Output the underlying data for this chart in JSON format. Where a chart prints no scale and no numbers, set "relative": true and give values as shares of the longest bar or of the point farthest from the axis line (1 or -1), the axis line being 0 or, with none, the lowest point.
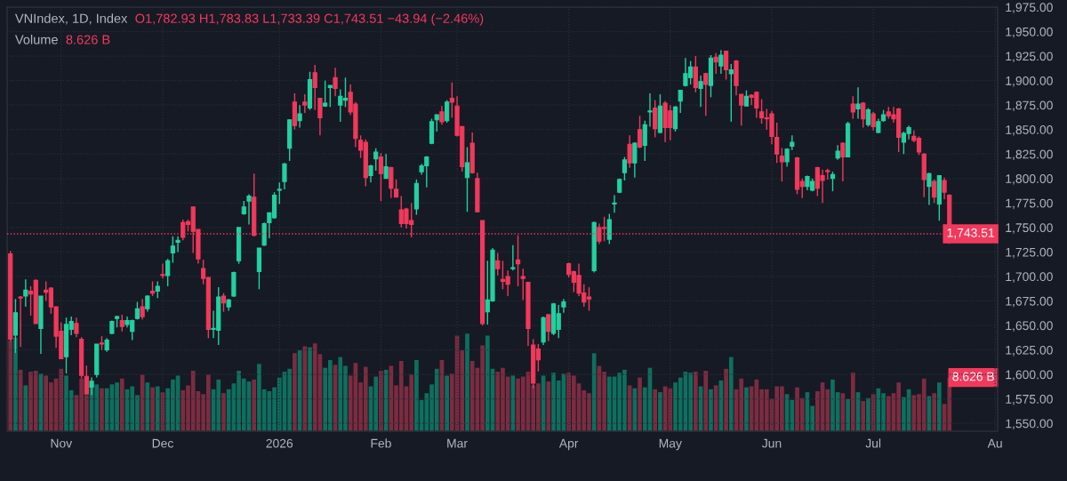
{
  "chart_data": [
    {
      "type": "candlestick",
      "title": "VNIndex, 1D, Index",
      "subtitle": "O1,782.93 H1,783.83 L1,733.39 C1,743.51 −43.94 (−2.46%)",
      "categories": [
        null,
        null,
        null,
        null,
        null,
        null,
        null,
        null,
        null,
        null,
        "Nov",
        null,
        null,
        null,
        null,
        null,
        null,
        null,
        null,
        null,
        null,
        null,
        null,
        null,
        null,
        null,
        null,
        null,
        null,
        null,
        "Dec",
        null,
        null,
        null,
        null,
        null,
        null,
        null,
        null,
        null,
        null,
        null,
        null,
        null,
        null,
        null,
        null,
        null,
        null,
        null,
        null,
        null,
        null,
        "2026",
        null,
        null,
        null,
        null,
        null,
        null,
        null,
        null,
        null,
        null,
        null,
        null,
        null,
        null,
        null,
        null,
        null,
        null,
        null,
        "Feb",
        null,
        null,
        null,
        null,
        null,
        null,
        null,
        null,
        null,
        null,
        null,
        null,
        null,
        null,
        "Mar",
        null,
        null,
        null,
        null,
        null,
        null,
        null,
        null,
        null,
        null,
        null,
        null,
        null,
        null,
        null,
        null,
        null,
        null,
        null,
        null,
        null,
        "Apr",
        null,
        null,
        null,
        null,
        null,
        null,
        null,
        null,
        null,
        null,
        null,
        null,
        null,
        null,
        null,
        null,
        null,
        null,
        null,
        "May",
        null,
        null,
        null,
        null,
        null,
        null,
        null,
        null,
        null,
        null,
        null,
        null,
        null,
        null,
        null,
        null,
        null,
        null,
        null,
        "Jun",
        null,
        null,
        null,
        null,
        null,
        null,
        null,
        null,
        null,
        null,
        null,
        null,
        null,
        null,
        null,
        null,
        null,
        null,
        null,
        "Jul",
        null,
        null,
        null,
        null,
        null,
        null,
        null,
        null,
        null,
        null,
        null,
        null,
        null,
        null,
        null,
        null,
        null,
        null,
        null,
        null,
        null,
        null,
        null,
        "Au"
      ],
      "ohlc": [
        [
          1723,
          1726,
          1634,
          1636
        ],
        [
          1640,
          1677,
          1622,
          1663
        ],
        [
          1679,
          1680,
          1628,
          1678
        ],
        [
          1680,
          1697,
          1669,
          1686
        ],
        [
          1685,
          1690,
          1660,
          1682
        ],
        [
          1696,
          1697,
          1652,
          1652
        ],
        [
          1647,
          1680,
          1621,
          1680
        ],
        [
          1686,
          1695,
          1675,
          1684
        ],
        [
          1688,
          1689,
          1662,
          1669
        ],
        [
          1669,
          1669,
          1627,
          1639
        ],
        [
          1644,
          1653,
          1616,
          1616
        ],
        [
          1618,
          1658,
          1601,
          1651
        ],
        [
          1646,
          1659,
          1640,
          1654
        ],
        [
          1652,
          1658,
          1638,
          1642
        ],
        [
          1636,
          1638,
          1596,
          1599
        ],
        [
          1598,
          1609,
          1580,
          1580
        ],
        [
          1587,
          1597,
          1579,
          1593
        ],
        [
          1600,
          1631,
          1597,
          1631
        ],
        [
          1632,
          1639,
          1625,
          1631
        ],
        [
          1625,
          1637,
          1623,
          1635
        ],
        [
          1642,
          1655,
          1641,
          1654
        ],
        [
          1657,
          1660,
          1648,
          1659
        ],
        [
          1655,
          1661,
          1644,
          1649
        ],
        [
          1651,
          1659,
          1648,
          1655
        ],
        [
          1644,
          1656,
          1635,
          1655
        ],
        [
          1657,
          1674,
          1656,
          1667
        ],
        [
          1669,
          1677,
          1656,
          1659
        ],
        [
          1667,
          1681,
          1664,
          1680
        ],
        [
          1685,
          1695,
          1680,
          1683
        ],
        [
          1685,
          1695,
          1678,
          1690
        ],
        [
          1702,
          1713,
          1698,
          1701
        ],
        [
          1701,
          1718,
          1690,
          1716
        ],
        [
          1724,
          1741,
          1714,
          1731
        ],
        [
          1735,
          1741,
          1725,
          1737
        ],
        [
          1755,
          1758,
          1737,
          1740
        ],
        [
          1756,
          1758,
          1746,
          1753
        ],
        [
          1771,
          1771,
          1724,
          1746
        ],
        [
          1748,
          1748,
          1713,
          1718
        ],
        [
          1708,
          1717,
          1692,
          1698
        ],
        [
          1699,
          1699,
          1637,
          1646
        ],
        [
          1646,
          1665,
          1637,
          1647
        ],
        [
          1645,
          1689,
          1630,
          1679
        ],
        [
          1680,
          1683,
          1664,
          1673
        ],
        [
          1669,
          1677,
          1665,
          1676
        ],
        [
          1680,
          1705,
          1679,
          1704
        ],
        [
          1716,
          1750,
          1713,
          1750
        ],
        [
          1764,
          1777,
          1763,
          1771
        ],
        [
          1777,
          1784,
          1753,
          1782
        ],
        [
          1781,
          1805,
          1741,
          1742
        ],
        [
          1705,
          1729,
          1687,
          1729
        ],
        [
          1732,
          1755,
          1731,
          1754
        ],
        [
          1755,
          1765,
          1739,
          1765
        ],
        [
          1760,
          1786,
          1759,
          1783
        ],
        [
          1788,
          1796,
          1774,
          1789
        ],
        [
          1797,
          1816,
          1789,
          1815
        ],
        [
          1831,
          1860,
          1818,
          1860
        ],
        [
          1878,
          1887,
          1850,
          1854
        ],
        [
          1859,
          1875,
          1852,
          1866
        ],
        [
          1878,
          1886,
          1867,
          1875
        ],
        [
          1872,
          1909,
          1870,
          1901
        ],
        [
          1908,
          1916,
          1870,
          1893
        ],
        [
          1882,
          1882,
          1844,
          1862
        ],
        [
          1874,
          1900,
          1873,
          1877
        ],
        [
          1893,
          1895,
          1873,
          1895
        ],
        [
          1903,
          1913,
          1884,
          1892
        ],
        [
          1875,
          1891,
          1858,
          1884
        ],
        [
          1880,
          1903,
          1873,
          1882
        ],
        [
          1888,
          1896,
          1865,
          1868
        ],
        [
          1876,
          1878,
          1832,
          1841
        ],
        [
          1839,
          1844,
          1821,
          1829
        ],
        [
          1837,
          1840,
          1792,
          1801
        ],
        [
          1803,
          1814,
          1796,
          1813
        ],
        [
          1820,
          1831,
          1808,
          1827
        ],
        [
          1822,
          1826,
          1777,
          1805
        ],
        [
          1800,
          1825,
          1800,
          1812
        ],
        [
          1811,
          1812,
          1780,
          1790
        ],
        [
          1789,
          1799,
          1781,
          1781
        ],
        [
          1768,
          1782,
          1750,
          1754
        ],
        [
          1769,
          1770,
          1749,
          1754
        ],
        [
          1757,
          1775,
          1740,
          1753
        ],
        [
          1769,
          1799,
          1763,
          1795
        ],
        [
          1807,
          1815,
          1804,
          1813
        ],
        [
          1813,
          1823,
          1791,
          1822
        ],
        [
          1836,
          1861,
          1835,
          1858
        ],
        [
          1860,
          1865,
          1848,
          1865
        ],
        [
          1868,
          1874,
          1855,
          1858
        ],
        [
          1859,
          1880,
          1857,
          1878
        ],
        [
          1882,
          1898,
          1862,
          1878
        ],
        [
          1874,
          1884,
          1843,
          1844
        ],
        [
          1853,
          1853,
          1807,
          1812
        ],
        [
          1801,
          1832,
          1766,
          1816
        ],
        [
          1836,
          1847,
          1805,
          1806
        ],
        [
          1800,
          1806,
          1766,
          1766
        ],
        [
          1757,
          1757,
          1650,
          1652
        ],
        [
          1664,
          1716,
          1651,
          1676
        ],
        [
          1675,
          1729,
          1674,
          1727
        ],
        [
          1716,
          1724,
          1701,
          1708
        ],
        [
          1697,
          1716,
          1687,
          1695
        ],
        [
          1700,
          1706,
          1680,
          1692
        ],
        [
          1708,
          1732,
          1706,
          1709
        ],
        [
          1717,
          1742,
          1690,
          1713
        ],
        [
          1700,
          1708,
          1676,
          1698
        ],
        [
          1694,
          1694,
          1629,
          1647
        ],
        [
          1630,
          1636,
          1586,
          1591
        ],
        [
          1626,
          1631,
          1603,
          1615
        ],
        [
          1633,
          1659,
          1630,
          1658
        ],
        [
          1661,
          1661,
          1634,
          1644
        ],
        [
          1642,
          1673,
          1640,
          1672
        ],
        [
          1646,
          1671,
          1637,
          1662
        ],
        [
          1669,
          1677,
          1663,
          1674
        ],
        [
          1713,
          1714,
          1699,
          1702
        ],
        [
          1705,
          1706,
          1684,
          1694
        ],
        [
          1701,
          1713,
          1680,
          1683
        ],
        [
          1683,
          1692,
          1669,
          1674
        ],
        [
          1679,
          1689,
          1665,
          1677
        ],
        [
          1706,
          1756,
          1704,
          1755
        ],
        [
          1750,
          1754,
          1733,
          1736
        ],
        [
          1750,
          1761,
          1736,
          1749
        ],
        [
          1738,
          1764,
          1733,
          1758
        ],
        [
          1774,
          1783,
          1765,
          1775
        ],
        [
          1786,
          1800,
          1785,
          1799
        ],
        [
          1806,
          1822,
          1798,
          1819
        ],
        [
          1835,
          1844,
          1811,
          1816
        ],
        [
          1816,
          1837,
          1801,
          1836
        ],
        [
          1850,
          1864,
          1831,
          1832
        ],
        [
          1834,
          1859,
          1818,
          1855
        ],
        [
          1868,
          1887,
          1853,
          1869
        ],
        [
          1872,
          1880,
          1842,
          1851
        ],
        [
          1847,
          1886,
          1846,
          1874
        ],
        [
          1877,
          1879,
          1837,
          1852
        ],
        [
          1869,
          1875,
          1839,
          1852
        ],
        [
          1851,
          1874,
          1848,
          1873
        ],
        [
          1879,
          1890,
          1867,
          1890
        ],
        [
          1895,
          1923,
          1894,
          1907
        ],
        [
          1903,
          1920,
          1896,
          1914
        ],
        [
          1914,
          1925,
          1888,
          1893
        ],
        [
          1892,
          1905,
          1873,
          1899
        ],
        [
          1907,
          1908,
          1864,
          1896
        ],
        [
          1895,
          1926,
          1883,
          1923
        ],
        [
          1924,
          1928,
          1907,
          1919
        ],
        [
          1915,
          1931,
          1907,
          1926
        ],
        [
          1930,
          1930,
          1901,
          1911
        ],
        [
          1907,
          1917,
          1858,
          1911
        ],
        [
          1920,
          1921,
          1885,
          1895
        ],
        [
          1886,
          1886,
          1854,
          1875
        ],
        [
          1874,
          1890,
          1874,
          1884
        ],
        [
          1885,
          1886,
          1875,
          1883
        ],
        [
          1888,
          1889,
          1862,
          1872
        ],
        [
          1868,
          1881,
          1856,
          1862
        ],
        [
          1862,
          1871,
          1850,
          1861
        ],
        [
          1866,
          1869,
          1835,
          1843
        ],
        [
          1842,
          1857,
          1816,
          1825
        ],
        [
          1823,
          1831,
          1797,
          1817
        ],
        [
          1817,
          1831,
          1812,
          1830
        ],
        [
          1833,
          1844,
          1829,
          1837
        ],
        [
          1821,
          1822,
          1784,
          1789
        ],
        [
          1797,
          1800,
          1780,
          1792
        ],
        [
          1792,
          1803,
          1788,
          1802
        ],
        [
          1788,
          1800,
          1787,
          1797
        ],
        [
          1811,
          1812,
          1782,
          1790
        ],
        [
          1803,
          1809,
          1775,
          1798
        ],
        [
          1808,
          1810,
          1799,
          1807
        ],
        [
          1800,
          1807,
          1787,
          1804
        ],
        [
          1821,
          1834,
          1819,
          1828
        ],
        [
          1836,
          1837,
          1797,
          1822
        ],
        [
          1822,
          1858,
          1822,
          1856
        ],
        [
          1876,
          1884,
          1861,
          1868
        ],
        [
          1871,
          1893,
          1861,
          1876
        ],
        [
          1877,
          1878,
          1852,
          1861
        ],
        [
          1855,
          1872,
          1853,
          1870
        ],
        [
          1866,
          1868,
          1849,
          1853
        ],
        [
          1847,
          1861,
          1846,
          1858
        ],
        [
          1859,
          1870,
          1858,
          1865
        ],
        [
          1868,
          1873,
          1861,
          1864
        ],
        [
          1865,
          1873,
          1857,
          1861
        ],
        [
          1871,
          1872,
          1827,
          1842
        ],
        [
          1837,
          1848,
          1825,
          1846
        ],
        [
          1846,
          1854,
          1840,
          1852
        ],
        [
          1843,
          1849,
          1837,
          1839
        ],
        [
          1841,
          1843,
          1824,
          1827
        ],
        [
          1825,
          1826,
          1781,
          1799
        ],
        [
          1792,
          1806,
          1773,
          1805
        ],
        [
          1797,
          1799,
          1775,
          1781
        ],
        [
          1774,
          1803,
          1757,
          1803
        ],
        [
          1798,
          1801,
          1779,
          1786
        ],
        [
          1782.93,
          1783.83,
          1733.39,
          1743.51
        ],
        null,
        null,
        null,
        null,
        null,
        null,
        null,
        null,
        null
      ],
      "colors": [
        "#f2395b",
        "#22d1a0",
        "#f2395b",
        "#22d1a0",
        "#f2395b",
        "#f2395b",
        "#22d1a0",
        "#f2395b",
        "#f2395b",
        "#f2395b",
        "#f2395b",
        "#22d1a0",
        "#22d1a0",
        "#f2395b",
        "#f2395b",
        "#f2395b",
        "#22d1a0",
        "#22d1a0",
        "#f2395b",
        "#22d1a0",
        "#22d1a0",
        "#22d1a0",
        "#f2395b",
        "#22d1a0",
        "#22d1a0",
        "#22d1a0",
        "#f2395b",
        "#22d1a0",
        "#f2395b",
        "#22d1a0",
        "#f2395b",
        "#22d1a0",
        "#22d1a0",
        "#22d1a0",
        "#f2395b",
        "#f2395b",
        "#f2395b",
        "#f2395b",
        "#f2395b",
        "#f2395b",
        "#22d1a0",
        "#22d1a0",
        "#f2395b",
        "#22d1a0",
        "#22d1a0",
        "#22d1a0",
        "#22d1a0",
        "#22d1a0",
        "#f2395b",
        "#22d1a0",
        "#22d1a0",
        "#22d1a0",
        "#22d1a0",
        "#22d1a0",
        "#22d1a0",
        "#22d1a0",
        "#f2395b",
        "#22d1a0",
        "#f2395b",
        "#22d1a0",
        "#f2395b",
        "#f2395b",
        "#22d1a0",
        "#22d1a0",
        "#f2395b",
        "#22d1a0",
        "#22d1a0",
        "#f2395b",
        "#f2395b",
        "#f2395b",
        "#f2395b",
        "#22d1a0",
        "#22d1a0",
        "#f2395b",
        "#22d1a0",
        "#f2395b",
        "#f2395b",
        "#f2395b",
        "#f2395b",
        "#f2395b",
        "#22d1a0",
        "#22d1a0",
        "#22d1a0",
        "#22d1a0",
        "#22d1a0",
        "#f2395b",
        "#22d1a0",
        "#f2395b",
        "#f2395b",
        "#f2395b",
        "#22d1a0",
        "#f2395b",
        "#f2395b",
        "#f2395b",
        "#22d1a0",
        "#22d1a0",
        "#f2395b",
        "#f2395b",
        "#f2395b",
        "#22d1a0",
        "#f2395b",
        "#f2395b",
        "#f2395b",
        "#f2395b",
        "#f2395b",
        "#22d1a0",
        "#f2395b",
        "#22d1a0",
        "#22d1a0",
        "#22d1a0",
        "#f2395b",
        "#f2395b",
        "#f2395b",
        "#f2395b",
        "#f2395b",
        "#22d1a0",
        "#f2395b",
        "#f2395b",
        "#22d1a0",
        "#22d1a0",
        "#22d1a0",
        "#22d1a0",
        "#f2395b",
        "#22d1a0",
        "#f2395b",
        "#22d1a0",
        "#22d1a0",
        "#f2395b",
        "#22d1a0",
        "#f2395b",
        "#f2395b",
        "#22d1a0",
        "#22d1a0",
        "#22d1a0",
        "#22d1a0",
        "#f2395b",
        "#22d1a0",
        "#f2395b",
        "#22d1a0",
        "#f2395b",
        "#22d1a0",
        "#f2395b",
        "#22d1a0",
        "#f2395b",
        "#f2395b",
        "#22d1a0",
        "#f2395b",
        "#f2395b",
        "#f2395b",
        "#f2395b",
        "#f2395b",
        "#f2395b",
        "#f2395b",
        "#22d1a0",
        "#22d1a0",
        "#f2395b",
        "#f2395b",
        "#22d1a0",
        "#22d1a0",
        "#f2395b",
        "#f2395b",
        "#f2395b",
        "#22d1a0",
        "#22d1a0",
        "#f2395b",
        "#22d1a0",
        "#f2395b",
        "#22d1a0",
        "#f2395b",
        "#22d1a0",
        "#f2395b",
        "#22d1a0",
        "#22d1a0",
        "#f2395b",
        "#f2395b",
        "#f2395b",
        "#22d1a0",
        "#22d1a0",
        "#f2395b",
        "#f2395b",
        "#f2395b",
        "#22d1a0",
        "#f2395b",
        "#22d1a0",
        "#f2395b",
        "#f2395b",
        null,
        null,
        null,
        null,
        null,
        null,
        null,
        null,
        null
      ],
      "ylim": [
        1542,
        1975
      ],
      "yticks": [
        {
          "value": 1550,
          "label": "1,550.00"
        },
        {
          "value": 1575,
          "label": "1,575.00"
        },
        {
          "value": 1600,
          "label": "1,600.00"
        },
        {
          "value": 1625,
          "label": "1,625.00"
        },
        {
          "value": 1650,
          "label": "1,650.00"
        },
        {
          "value": 1675,
          "label": "1,675.00"
        },
        {
          "value": 1700,
          "label": "1,700.00"
        },
        {
          "value": 1725,
          "label": "1,725.00"
        },
        {
          "value": 1750,
          "label": "1,750.00"
        },
        {
          "value": 1775,
          "label": "1,775.00"
        },
        {
          "value": 1800,
          "label": "1,800.00"
        },
        {
          "value": 1825,
          "label": "1,825.00"
        },
        {
          "value": 1850,
          "label": "1,850.00"
        },
        {
          "value": 1875,
          "label": "1,875.00"
        },
        {
          "value": 1900,
          "label": "1,900.00"
        },
        {
          "value": 1925,
          "label": "1,925.00"
        },
        {
          "value": 1950,
          "label": "1,950.00"
        },
        {
          "value": 1975,
          "label": "1,975.00"
        }
      ],
      "ref_lines": [
        {
          "axis": "y",
          "value": 1743.51,
          "label": "1,743.51",
          "color": "#f2395b",
          "line_style": "dotted"
        }
      ],
      "grid": true
    },
    {
      "type": "bar",
      "relative": true,
      "title": "Volume",
      "subtitle": "8.626 B",
      "tick_labels": false,
      "annotations": [
        "8.626 B"
      ],
      "categories": [
        null,
        null,
        null,
        null,
        null,
        null,
        null,
        null,
        null,
        null,
        null,
        null,
        null,
        null,
        null,
        null,
        null,
        null,
        null,
        null,
        null,
        null,
        null,
        null,
        null,
        null,
        null,
        null,
        null,
        null,
        null,
        null,
        null,
        null,
        null,
        null,
        null,
        null,
        null,
        null,
        null,
        null,
        null,
        null,
        null,
        null,
        null,
        null,
        null,
        null,
        null,
        null,
        null,
        null,
        null,
        null,
        null,
        null,
        null,
        null,
        null,
        null,
        null,
        null,
        null,
        null,
        null,
        null,
        null,
        null,
        null,
        null,
        null,
        null,
        null,
        null,
        null,
        null,
        null,
        null,
        null,
        null,
        null,
        null,
        null,
        null,
        null,
        null,
        null,
        null,
        null,
        null,
        null,
        null,
        null,
        null,
        null,
        null,
        null,
        null,
        null,
        null,
        null,
        null,
        null,
        null,
        null,
        null,
        null,
        null,
        null,
        null,
        null,
        null,
        null,
        null,
        null,
        null,
        null,
        null,
        null,
        null,
        null,
        null,
        null,
        null,
        null,
        null,
        null,
        null,
        null,
        null,
        null,
        null,
        null,
        null,
        null,
        null,
        null,
        null,
        null,
        null,
        null,
        null,
        null,
        null,
        null,
        null,
        null,
        null,
        null,
        null,
        null,
        null,
        null,
        null,
        null,
        null,
        null,
        null,
        null,
        null,
        null,
        null,
        null,
        null,
        null,
        null,
        null,
        null,
        null,
        null,
        null,
        null,
        null,
        null,
        null,
        null,
        null,
        null,
        null,
        null,
        null,
        null,
        null,
        null
      ],
      "values": [
        0.93,
        0.96,
        0.63,
        0.47,
        0.61,
        0.62,
        0.59,
        0.57,
        0.5,
        0.54,
        0.64,
        0.57,
        0.42,
        0.37,
        0.54,
        0.37,
        0.49,
        0.48,
        0.44,
        0.44,
        0.48,
        0.5,
        0.54,
        0.43,
        0.46,
        0.37,
        0.58,
        0.5,
        0.45,
        0.46,
        0.4,
        0.44,
        0.53,
        0.57,
        0.42,
        0.47,
        0.62,
        0.41,
        0.38,
        0.58,
        0.43,
        0.53,
        0.39,
        0.43,
        0.49,
        0.62,
        0.54,
        0.51,
        0.53,
        0.69,
        0.43,
        0.41,
        0.45,
        0.55,
        0.61,
        0.64,
        0.8,
        0.83,
        0.87,
        0.86,
        0.9,
        0.79,
        0.65,
        0.73,
        0.68,
        0.76,
        0.67,
        0.57,
        0.7,
        0.5,
        0.66,
        0.46,
        0.56,
        0.62,
        0.63,
        0.67,
        0.47,
        0.72,
        0.46,
        0.58,
        0.73,
        0.32,
        0.39,
        0.48,
        0.64,
        0.73,
        0.57,
        0.59,
        0.98,
        0.83,
        1.0,
        0.72,
        0.65,
        0.88,
        0.98,
        0.64,
        0.61,
        0.65,
        0.56,
        0.57,
        0.54,
        0.56,
        0.61,
        0.47,
        0.49,
        0.57,
        0.51,
        0.6,
        0.52,
        0.59,
        0.6,
        0.57,
        0.49,
        0.42,
        0.39,
        0.8,
        0.67,
        0.61,
        0.56,
        0.56,
        0.6,
        0.63,
        0.47,
        0.44,
        0.55,
        0.45,
        0.65,
        0.43,
        0.4,
        0.46,
        0.44,
        0.5,
        0.55,
        0.61,
        0.6,
        0.61,
        0.46,
        0.62,
        0.43,
        0.47,
        0.52,
        0.64,
        0.76,
        0.43,
        0.54,
        0.45,
        0.46,
        0.53,
        0.43,
        0.43,
        0.33,
        0.46,
        0.46,
        0.38,
        0.32,
        0.45,
        0.34,
        0.4,
        0.26,
        0.41,
        0.5,
        0.43,
        0.53,
        0.4,
        0.39,
        0.33,
        0.6,
        0.4,
        0.31,
        0.34,
        0.38,
        0.44,
        0.39,
        0.36,
        0.39,
        0.5,
        0.35,
        0.43,
        0.37,
        0.38,
        0.54,
        0.36,
        0.39,
        0.5,
        0.28,
        0.55
      ],
      "colors": [
        "#7c2c40",
        "#0e6f5e",
        "#7c2c40",
        "#0e6f5e",
        "#7c2c40",
        "#7c2c40",
        "#0e6f5e",
        "#7c2c40",
        "#7c2c40",
        "#7c2c40",
        "#7c2c40",
        "#0e6f5e",
        "#0e6f5e",
        "#7c2c40",
        "#7c2c40",
        "#7c2c40",
        "#0e6f5e",
        "#0e6f5e",
        "#7c2c40",
        "#0e6f5e",
        "#0e6f5e",
        "#0e6f5e",
        "#7c2c40",
        "#0e6f5e",
        "#0e6f5e",
        "#0e6f5e",
        "#7c2c40",
        "#0e6f5e",
        "#7c2c40",
        "#0e6f5e",
        "#7c2c40",
        "#0e6f5e",
        "#0e6f5e",
        "#0e6f5e",
        "#7c2c40",
        "#7c2c40",
        "#7c2c40",
        "#7c2c40",
        "#7c2c40",
        "#7c2c40",
        "#0e6f5e",
        "#0e6f5e",
        "#7c2c40",
        "#0e6f5e",
        "#0e6f5e",
        "#0e6f5e",
        "#0e6f5e",
        "#0e6f5e",
        "#7c2c40",
        "#0e6f5e",
        "#0e6f5e",
        "#0e6f5e",
        "#0e6f5e",
        "#0e6f5e",
        "#0e6f5e",
        "#0e6f5e",
        "#7c2c40",
        "#0e6f5e",
        "#7c2c40",
        "#0e6f5e",
        "#7c2c40",
        "#7c2c40",
        "#0e6f5e",
        "#0e6f5e",
        "#7c2c40",
        "#0e6f5e",
        "#0e6f5e",
        "#7c2c40",
        "#7c2c40",
        "#7c2c40",
        "#7c2c40",
        "#0e6f5e",
        "#0e6f5e",
        "#7c2c40",
        "#0e6f5e",
        "#7c2c40",
        "#7c2c40",
        "#7c2c40",
        "#7c2c40",
        "#7c2c40",
        "#0e6f5e",
        "#0e6f5e",
        "#0e6f5e",
        "#0e6f5e",
        "#0e6f5e",
        "#7c2c40",
        "#0e6f5e",
        "#7c2c40",
        "#7c2c40",
        "#7c2c40",
        "#0e6f5e",
        "#7c2c40",
        "#7c2c40",
        "#7c2c40",
        "#0e6f5e",
        "#0e6f5e",
        "#7c2c40",
        "#7c2c40",
        "#7c2c40",
        "#0e6f5e",
        "#7c2c40",
        "#7c2c40",
        "#7c2c40",
        "#7c2c40",
        "#7c2c40",
        "#0e6f5e",
        "#7c2c40",
        "#0e6f5e",
        "#0e6f5e",
        "#0e6f5e",
        "#7c2c40",
        "#7c2c40",
        "#7c2c40",
        "#7c2c40",
        "#7c2c40",
        "#0e6f5e",
        "#7c2c40",
        "#7c2c40",
        "#0e6f5e",
        "#0e6f5e",
        "#0e6f5e",
        "#0e6f5e",
        "#7c2c40",
        "#0e6f5e",
        "#7c2c40",
        "#0e6f5e",
        "#0e6f5e",
        "#7c2c40",
        "#0e6f5e",
        "#7c2c40",
        "#7c2c40",
        "#0e6f5e",
        "#0e6f5e",
        "#0e6f5e",
        "#0e6f5e",
        "#7c2c40",
        "#0e6f5e",
        "#7c2c40",
        "#0e6f5e",
        "#7c2c40",
        "#0e6f5e",
        "#7c2c40",
        "#0e6f5e",
        "#7c2c40",
        "#7c2c40",
        "#0e6f5e",
        "#7c2c40",
        "#7c2c40",
        "#7c2c40",
        "#7c2c40",
        "#7c2c40",
        "#7c2c40",
        "#7c2c40",
        "#0e6f5e",
        "#0e6f5e",
        "#7c2c40",
        "#7c2c40",
        "#0e6f5e",
        "#0e6f5e",
        "#7c2c40",
        "#7c2c40",
        "#7c2c40",
        "#0e6f5e",
        "#0e6f5e",
        "#7c2c40",
        "#0e6f5e",
        "#7c2c40",
        "#0e6f5e",
        "#7c2c40",
        "#0e6f5e",
        "#7c2c40",
        "#0e6f5e",
        "#0e6f5e",
        "#7c2c40",
        "#7c2c40",
        "#7c2c40",
        "#0e6f5e",
        "#0e6f5e",
        "#7c2c40",
        "#7c2c40",
        "#7c2c40",
        "#0e6f5e",
        "#7c2c40",
        "#0e6f5e",
        "#7c2c40",
        "#7c2c40"
      ]
    }
  ]
}
